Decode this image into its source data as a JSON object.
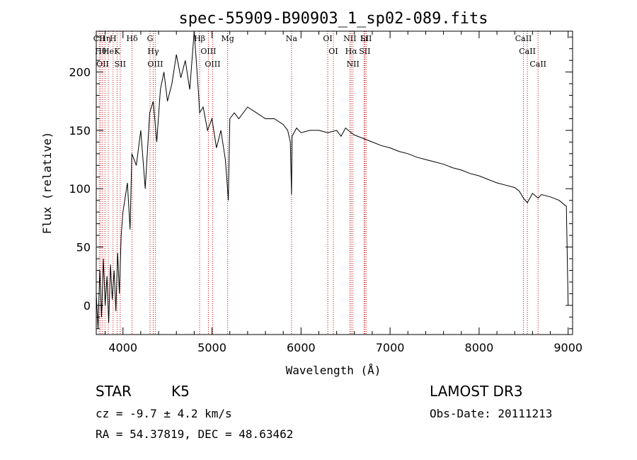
{
  "chart_data": {
    "type": "line",
    "title": "spec-55909-B90903_1_sp02-089.fits",
    "xlabel": "Wavelength (Å)",
    "ylabel": "Flux (relative)",
    "xlim": [
      3700,
      9050
    ],
    "ylim": [
      -25,
      235
    ],
    "xticks": [
      4000,
      5000,
      6000,
      7000,
      8000,
      9000
    ],
    "yticks": [
      0,
      50,
      100,
      150,
      200
    ],
    "line_color": "#000000",
    "marker_color": "#cc0000",
    "series": [
      {
        "x": [
          3700,
          3720,
          3740,
          3760,
          3780,
          3800,
          3820,
          3840,
          3860,
          3880,
          3900,
          3920,
          3940,
          3960,
          3980,
          4000,
          4050,
          4080,
          4100,
          4150,
          4200,
          4250,
          4300,
          4340,
          4380,
          4420,
          4460,
          4500,
          4550,
          4600,
          4650,
          4700,
          4750,
          4800,
          4850,
          4861,
          4900,
          4950,
          5000,
          5050,
          5100,
          5150,
          5170,
          5183,
          5200,
          5250,
          5300,
          5400,
          5500,
          5600,
          5700,
          5800,
          5850,
          5880,
          5893,
          5900,
          5950,
          6000,
          6100,
          6200,
          6300,
          6400,
          6450,
          6500,
          6563,
          6600,
          6700,
          6800,
          6900,
          7000,
          7100,
          7200,
          7300,
          7400,
          7500,
          7600,
          7700,
          7800,
          7900,
          8000,
          8100,
          8200,
          8300,
          8400,
          8450,
          8498,
          8542,
          8600,
          8662,
          8700,
          8800,
          8900,
          8960,
          8980,
          9000
        ],
        "y": [
          10,
          -20,
          30,
          -10,
          40,
          0,
          25,
          -15,
          35,
          5,
          30,
          -5,
          45,
          10,
          60,
          80,
          105,
          65,
          130,
          120,
          150,
          100,
          165,
          175,
          140,
          185,
          200,
          175,
          190,
          215,
          195,
          210,
          185,
          235,
          180,
          165,
          170,
          150,
          160,
          135,
          150,
          125,
          105,
          90,
          160,
          165,
          160,
          170,
          165,
          160,
          160,
          155,
          150,
          140,
          95,
          145,
          152,
          148,
          150,
          150,
          148,
          150,
          145,
          152,
          148,
          146,
          143,
          140,
          137,
          135,
          132,
          130,
          127,
          125,
          123,
          121,
          118,
          116,
          113,
          111,
          108,
          105,
          103,
          101,
          98,
          92,
          88,
          96,
          92,
          95,
          93,
          90,
          86,
          85,
          0
        ]
      }
    ],
    "line_markers": [
      {
        "wavelength": 3734,
        "label": "CII"
      },
      {
        "wavelength": 3750,
        "label": "Hθ"
      },
      {
        "wavelength": 3771,
        "label": "OII"
      },
      {
        "wavelength": 3798,
        "label": "Hη"
      },
      {
        "wavelength": 3835,
        "label": "He"
      },
      {
        "wavelength": 3889,
        "label": "H"
      },
      {
        "wavelength": 3934,
        "label": "K"
      },
      {
        "wavelength": 3969,
        "label": "SII"
      },
      {
        "wavelength": 4102,
        "label": "Hδ"
      },
      {
        "wavelength": 4304,
        "label": "G"
      },
      {
        "wavelength": 4340,
        "label": "Hγ"
      },
      {
        "wavelength": 4363,
        "label": "OIII"
      },
      {
        "wavelength": 4861,
        "label": "Hβ"
      },
      {
        "wavelength": 4959,
        "label": "OIII"
      },
      {
        "wavelength": 5007,
        "label": "OIII"
      },
      {
        "wavelength": 5176,
        "label": "Mg"
      },
      {
        "wavelength": 5893,
        "label": "Na"
      },
      {
        "wavelength": 6300,
        "label": "OI"
      },
      {
        "wavelength": 6363,
        "label": "OI"
      },
      {
        "wavelength": 6548,
        "label": "NII"
      },
      {
        "wavelength": 6563,
        "label": "Hα"
      },
      {
        "wavelength": 6583,
        "label": "NII"
      },
      {
        "wavelength": 6707,
        "label": "Li"
      },
      {
        "wavelength": 6716,
        "label": "SII"
      },
      {
        "wavelength": 6731,
        "label": "SII"
      },
      {
        "wavelength": 8498,
        "label": "CaII"
      },
      {
        "wavelength": 8542,
        "label": "CaII"
      },
      {
        "wavelength": 8662,
        "label": "CaII"
      }
    ]
  },
  "info": {
    "class_text": "STAR",
    "subclass_text": "K5",
    "survey_text": "LAMOST DR3",
    "cz_text": "cz = -9.7 ± 4.2 km/s",
    "obsdate_text": "Obs-Date: 20111213",
    "coords_text": "RA =  54.37819, DEC =  48.63462"
  }
}
